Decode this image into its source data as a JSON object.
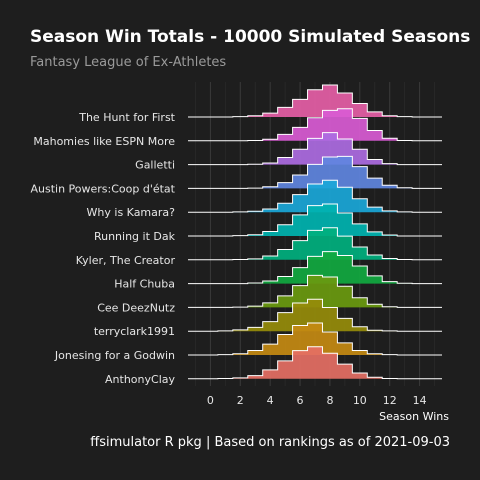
{
  "title": "Season Win Totals - 10000 Simulated Seasons",
  "subtitle": "Fantasy League of Ex-Athletes",
  "caption": "ffsimulator R pkg | Based on rankings as of 2021-09-03",
  "chart_data": {
    "type": "area",
    "subtype": "ridgeline-histogram",
    "title": "Season Win Totals - 10000 Simulated Seasons",
    "subtitle": "Fantasy League of Ex-Athletes",
    "xlabel": "Season Wins",
    "ylabel": "",
    "xlim": [
      -1.5,
      15.5
    ],
    "x_ticks": [
      0,
      2,
      4,
      6,
      8,
      10,
      12,
      14
    ],
    "grid": "vertical",
    "legend": "none",
    "x": [
      0,
      1,
      2,
      3,
      4,
      5,
      6,
      7,
      8,
      9,
      10,
      11,
      12,
      13,
      14
    ],
    "series": [
      {
        "name": "The Hunt for First",
        "color": "#e55ea6",
        "values": [
          0,
          0,
          0.01,
          0.04,
          0.12,
          0.3,
          0.55,
          0.85,
          1.0,
          0.75,
          0.42,
          0.16,
          0.04,
          0.01,
          0
        ]
      },
      {
        "name": "Mahomies like ESPN More",
        "color": "#d95bd4",
        "values": [
          0,
          0,
          0,
          0.01,
          0.05,
          0.2,
          0.42,
          0.72,
          0.95,
          1.0,
          0.7,
          0.32,
          0.08,
          0.01,
          0
        ]
      },
      {
        "name": "Galletti",
        "color": "#ad6be2",
        "values": [
          0,
          0,
          0,
          0.01,
          0.05,
          0.22,
          0.48,
          0.82,
          1.0,
          0.8,
          0.48,
          0.16,
          0.03,
          0,
          0
        ]
      },
      {
        "name": "Austin Powers:Coop d'état",
        "color": "#5f86df",
        "values": [
          0,
          0,
          0,
          0.01,
          0.05,
          0.18,
          0.42,
          0.75,
          0.98,
          1.0,
          0.68,
          0.32,
          0.1,
          0.02,
          0
        ]
      },
      {
        "name": "Why is Kamara?",
        "color": "#1aa7d8",
        "values": [
          0,
          0,
          0.01,
          0.03,
          0.1,
          0.28,
          0.55,
          0.88,
          1.0,
          0.78,
          0.42,
          0.16,
          0.04,
          0.01,
          0
        ]
      },
      {
        "name": "Running it Dak",
        "color": "#00b3b0",
        "values": [
          0,
          0,
          0.01,
          0.04,
          0.14,
          0.35,
          0.66,
          0.95,
          1.0,
          0.72,
          0.38,
          0.13,
          0.03,
          0,
          0
        ]
      },
      {
        "name": "Kyler, The Creator",
        "color": "#00b07e",
        "values": [
          0,
          0,
          0.01,
          0.03,
          0.12,
          0.32,
          0.6,
          0.92,
          1.0,
          0.74,
          0.4,
          0.15,
          0.04,
          0.01,
          0
        ]
      },
      {
        "name": "Half Chuba",
        "color": "#11a940",
        "values": [
          0,
          0,
          0,
          0.02,
          0.08,
          0.22,
          0.5,
          0.85,
          1.0,
          0.88,
          0.55,
          0.24,
          0.06,
          0.01,
          0
        ]
      },
      {
        "name": "Cee DeezNutz",
        "color": "#6a9a0f",
        "values": [
          0,
          0,
          0.01,
          0.04,
          0.14,
          0.36,
          0.68,
          1.0,
          0.95,
          0.66,
          0.3,
          0.1,
          0.02,
          0,
          0
        ]
      },
      {
        "name": "terryclark1991",
        "color": "#968c0a",
        "values": [
          0,
          0.01,
          0.04,
          0.12,
          0.3,
          0.58,
          0.88,
          1.0,
          0.74,
          0.4,
          0.14,
          0.03,
          0.01,
          0,
          0
        ]
      },
      {
        "name": "Jonesing for a Godwin",
        "color": "#c48a12",
        "values": [
          0,
          0.01,
          0.04,
          0.14,
          0.34,
          0.64,
          0.92,
          1.0,
          0.72,
          0.38,
          0.14,
          0.04,
          0.01,
          0,
          0
        ]
      },
      {
        "name": "AnthonyClay",
        "color": "#e56f64",
        "values": [
          0,
          0.01,
          0.03,
          0.1,
          0.28,
          0.56,
          0.88,
          1.0,
          0.8,
          0.46,
          0.18,
          0.05,
          0.01,
          0,
          0
        ]
      }
    ]
  }
}
